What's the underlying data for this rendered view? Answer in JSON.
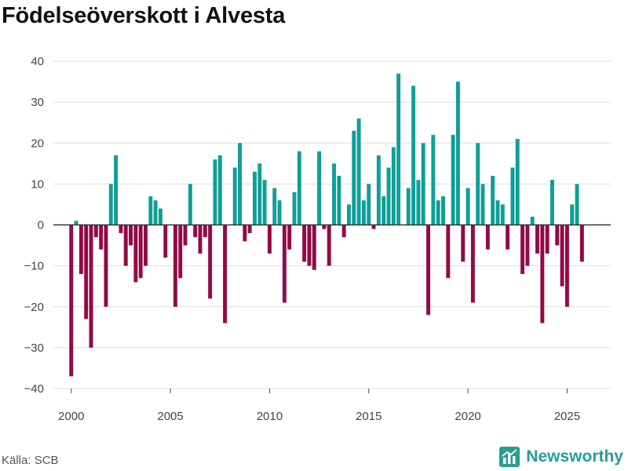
{
  "title": "Födelseöverskott i Alvesta",
  "source": "Källa: SCB",
  "brand": {
    "name": "Newsworthy",
    "icon": "bar-chart-logo-icon",
    "color": "#2a9d8f"
  },
  "colors": {
    "positive": "#0f9e98",
    "negative": "#920a46",
    "grid": "#dddddd",
    "zero_line": "#333333"
  },
  "chart_data": {
    "type": "bar",
    "title": "Födelseöverskott i Alvesta",
    "xlabel": "",
    "ylabel": "",
    "ylim": [
      -40,
      40
    ],
    "xlim": [
      1999.1,
      2027.2
    ],
    "y_ticks": [
      -40,
      -30,
      -20,
      -10,
      0,
      10,
      20,
      30,
      40
    ],
    "y_tick_labels": [
      "−40",
      "−30",
      "−20",
      "−10",
      "0",
      "10",
      "20",
      "30",
      "40"
    ],
    "x_ticks": [
      2000,
      2005,
      2010,
      2015,
      2020,
      2025
    ],
    "x_tick_labels": [
      "2000",
      "2005",
      "2010",
      "2015",
      "2020",
      "2025"
    ],
    "grid": true,
    "frequency": "quarterly",
    "x": [
      2000.0,
      2000.25,
      2000.5,
      2000.75,
      2001.0,
      2001.25,
      2001.5,
      2001.75,
      2002.0,
      2002.25,
      2002.5,
      2002.75,
      2003.0,
      2003.25,
      2003.5,
      2003.75,
      2004.0,
      2004.25,
      2004.5,
      2004.75,
      2005.0,
      2005.25,
      2005.5,
      2005.75,
      2006.0,
      2006.25,
      2006.5,
      2006.75,
      2007.0,
      2007.25,
      2007.5,
      2007.75,
      2008.0,
      2008.25,
      2008.5,
      2008.75,
      2009.0,
      2009.25,
      2009.5,
      2009.75,
      2010.0,
      2010.25,
      2010.5,
      2010.75,
      2011.0,
      2011.25,
      2011.5,
      2011.75,
      2012.0,
      2012.25,
      2012.5,
      2012.75,
      2013.0,
      2013.25,
      2013.5,
      2013.75,
      2014.0,
      2014.25,
      2014.5,
      2014.75,
      2015.0,
      2015.25,
      2015.5,
      2015.75,
      2016.0,
      2016.25,
      2016.5,
      2016.75,
      2017.0,
      2017.25,
      2017.5,
      2017.75,
      2018.0,
      2018.25,
      2018.5,
      2018.75,
      2019.0,
      2019.25,
      2019.5,
      2019.75,
      2020.0,
      2020.25,
      2020.5,
      2020.75,
      2021.0,
      2021.25,
      2021.5,
      2021.75,
      2022.0,
      2022.25,
      2022.5,
      2022.75,
      2023.0,
      2023.25,
      2023.5,
      2023.75,
      2024.0,
      2024.25,
      2024.5,
      2024.75,
      2025.0,
      2025.25,
      2025.5,
      2025.75
    ],
    "values": [
      -37,
      1,
      -12,
      -23,
      -30,
      -3,
      -6,
      -20,
      10,
      17,
      -2,
      -10,
      -5,
      -14,
      -13,
      -10,
      7,
      6,
      4,
      -8,
      0,
      -20,
      -13,
      -5,
      10,
      -3,
      -7,
      -3,
      -18,
      16,
      17,
      -24,
      0,
      14,
      20,
      -4,
      -2,
      13,
      15,
      11,
      -7,
      9,
      6,
      -19,
      -6,
      8,
      18,
      -9,
      -10,
      -11,
      18,
      -1,
      -10,
      15,
      12,
      -3,
      5,
      23,
      26,
      6,
      10,
      -1,
      17,
      7,
      14,
      19,
      37,
      0,
      9,
      34,
      11,
      20,
      -22,
      22,
      6,
      7,
      -13,
      22,
      35,
      -9,
      9,
      -19,
      20,
      10,
      -6,
      12,
      6,
      5,
      -6,
      14,
      21,
      -12,
      -10,
      2,
      -7,
      -24,
      -7,
      11,
      -5,
      -15,
      -20,
      5,
      10,
      -9
    ]
  }
}
